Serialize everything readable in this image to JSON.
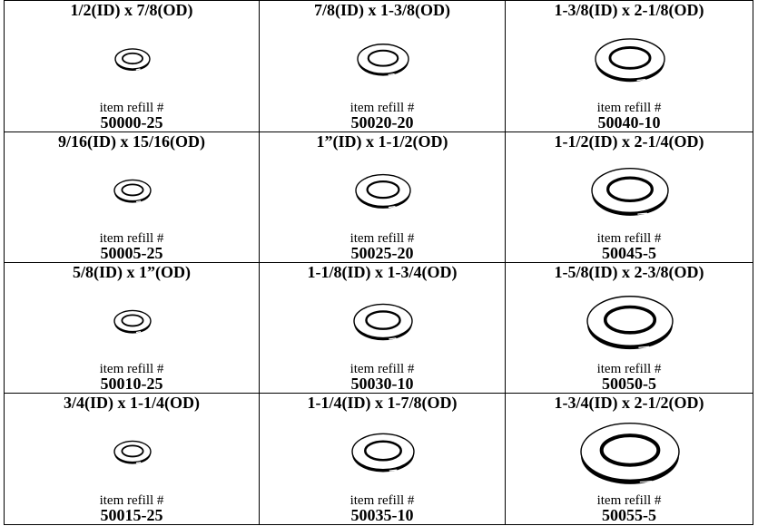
{
  "table": {
    "rows": [
      [
        {
          "size": "1/2(ID) x 7/8(OD)",
          "label": "item refill #",
          "item": "50000-25"
        },
        {
          "size": "7/8(ID) x 1-3/8(OD)",
          "label": "item refill #",
          "item": "50020-20"
        },
        {
          "size": "1-3/8(ID) x 2-1/8(OD)",
          "label": "item refill #",
          "item": "50040-10"
        }
      ],
      [
        {
          "size": "9/16(ID) x 15/16(OD)",
          "label": "item refill #",
          "item": "50005-25"
        },
        {
          "size": "1”(ID) x 1-1/2(OD)",
          "label": "item refill #",
          "item": "50025-20"
        },
        {
          "size": "1-1/2(ID) x 2-1/4(OD)",
          "label": "item refill #",
          "item": "50045-5"
        }
      ],
      [
        {
          "size": "5/8(ID) x 1”(OD)",
          "label": "item refill #",
          "item": "50010-25"
        },
        {
          "size": "1-1/8(ID) x 1-3/4(OD)",
          "label": "item refill #",
          "item": "50030-10"
        },
        {
          "size": "1-5/8(ID) x 2-3/8(OD)",
          "label": "item refill #",
          "item": "50050-5"
        }
      ],
      [
        {
          "size": "3/4(ID) x 1-1/4(OD)",
          "label": "item refill #",
          "item": "50015-25"
        },
        {
          "size": "1-1/4(ID) x 1-7/8(OD)",
          "label": "item refill #",
          "item": "50035-10"
        },
        {
          "size": "1-3/4(ID) x 2-1/2(OD)",
          "label": "item refill #",
          "item": "50055-5"
        }
      ]
    ]
  }
}
